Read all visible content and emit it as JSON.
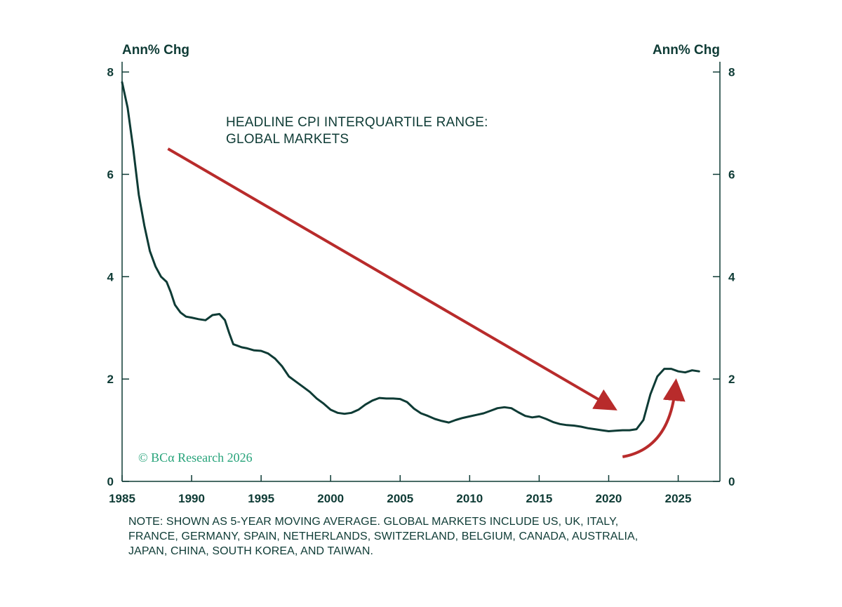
{
  "chart_data": {
    "type": "line",
    "title": "HEADLINE CPI INTERQUARTILE RANGE:",
    "subtitle": "GLOBAL MARKETS",
    "ylabel_left": "Ann% Chg",
    "ylabel_right": "Ann% Chg",
    "xlabel": "",
    "xlim": [
      1985,
      2028
    ],
    "ylim": [
      0,
      8.2
    ],
    "x_ticks": [
      "1985",
      "1990",
      "1995",
      "2000",
      "2005",
      "2010",
      "2015",
      "2020",
      "2025"
    ],
    "y_ticks": [
      "0",
      "2",
      "4",
      "6",
      "8"
    ],
    "grid": false,
    "series": [
      {
        "color": "#0e3b35",
        "x": [
          1985.0,
          1985.4,
          1985.8,
          1986.2,
          1986.6,
          1987.0,
          1987.4,
          1987.8,
          1988.2,
          1988.5,
          1988.8,
          1989.2,
          1989.6,
          1990.0,
          1990.5,
          1991.0,
          1991.5,
          1992.0,
          1992.4,
          1992.7,
          1993.0,
          1993.3,
          1993.6,
          1994.0,
          1994.5,
          1995.0,
          1995.5,
          1996.0,
          1996.5,
          1997.0,
          1997.5,
          1998.0,
          1998.5,
          1999.0,
          1999.5,
          2000.0,
          2000.5,
          2001.0,
          2001.5,
          2002.0,
          2002.5,
          2003.0,
          2003.5,
          2004.0,
          2004.5,
          2005.0,
          2005.5,
          2006.0,
          2006.5,
          2007.0,
          2007.5,
          2008.0,
          2008.5,
          2009.0,
          2009.5,
          2010.0,
          2010.5,
          2011.0,
          2011.5,
          2012.0,
          2012.5,
          2013.0,
          2013.5,
          2014.0,
          2014.5,
          2015.0,
          2015.5,
          2016.0,
          2016.5,
          2017.0,
          2017.5,
          2018.0,
          2018.5,
          2019.0,
          2019.5,
          2020.0,
          2020.5,
          2021.0,
          2021.5,
          2022.0,
          2022.5,
          2023.0,
          2023.5,
          2024.0,
          2024.5,
          2025.0,
          2025.5,
          2026.0,
          2026.5
        ],
        "y": [
          7.8,
          7.3,
          6.5,
          5.6,
          5.0,
          4.5,
          4.2,
          4.0,
          3.9,
          3.7,
          3.45,
          3.3,
          3.22,
          3.2,
          3.17,
          3.15,
          3.25,
          3.27,
          3.15,
          2.9,
          2.68,
          2.65,
          2.62,
          2.6,
          2.56,
          2.55,
          2.5,
          2.4,
          2.25,
          2.05,
          1.95,
          1.85,
          1.75,
          1.62,
          1.52,
          1.4,
          1.34,
          1.32,
          1.34,
          1.4,
          1.5,
          1.58,
          1.63,
          1.62,
          1.62,
          1.61,
          1.55,
          1.42,
          1.33,
          1.28,
          1.22,
          1.18,
          1.15,
          1.2,
          1.24,
          1.27,
          1.3,
          1.33,
          1.38,
          1.43,
          1.45,
          1.43,
          1.35,
          1.28,
          1.25,
          1.27,
          1.22,
          1.16,
          1.12,
          1.1,
          1.09,
          1.07,
          1.04,
          1.02,
          1.0,
          0.98,
          0.99,
          1.0,
          1.0,
          1.02,
          1.2,
          1.7,
          2.05,
          2.2,
          2.2,
          2.15,
          2.13,
          2.17,
          2.15
        ]
      }
    ],
    "annotations": [
      {
        "type": "arrow",
        "color": "#b82b2b",
        "from": {
          "x": 1988.3,
          "y": 6.5
        },
        "to": {
          "x": 2020.1,
          "y": 1.47
        }
      },
      {
        "type": "curved-arrow",
        "color": "#b82b2b",
        "from": {
          "x": 2021.0,
          "y": 0.48
        },
        "to": {
          "x": 2024.8,
          "y": 1.85
        }
      }
    ]
  },
  "watermark": "© BCα Research 2026",
  "note_lines": [
    "NOTE: SHOWN AS 5-YEAR MOVING AVERAGE. GLOBAL MARKETS INCLUDE US, UK, ITALY,",
    "FRANCE, GERMANY, SPAIN, NETHERLANDS, SWITZERLAND, BELGIUM, CANADA, AUSTRALIA,",
    "JAPAN, CHINA, SOUTH KOREA, AND TAIWAN."
  ]
}
